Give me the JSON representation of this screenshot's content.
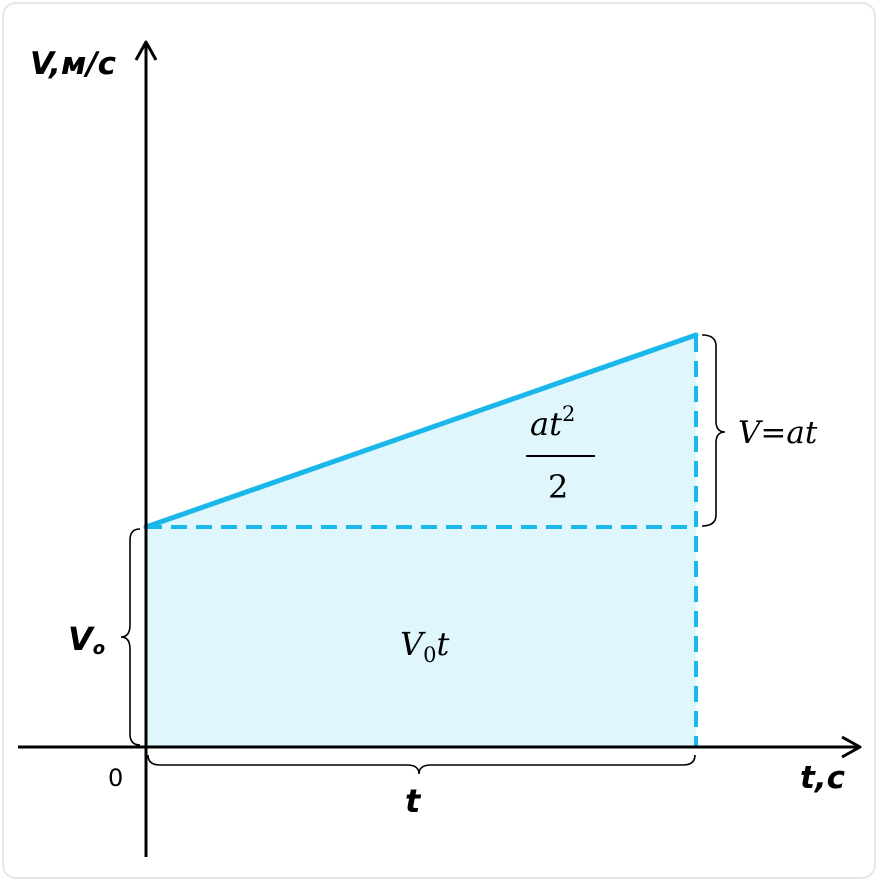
{
  "y_axis_label": "V,м/с",
  "x_axis_label": "t,c",
  "origin_label": "0",
  "v0_label": {
    "main": "V",
    "sub": "o"
  },
  "t_label": "t",
  "rect_area_label": {
    "main": "V",
    "sub": "0",
    "tail": "t"
  },
  "triangle_area_label": {
    "numerator_main": "at",
    "numerator_sup": "2",
    "denominator": "2"
  },
  "delta_v_label": "V=at",
  "colors": {
    "line": "#1ab7ea",
    "fill": "#def6fc",
    "axis": "#000000"
  }
}
